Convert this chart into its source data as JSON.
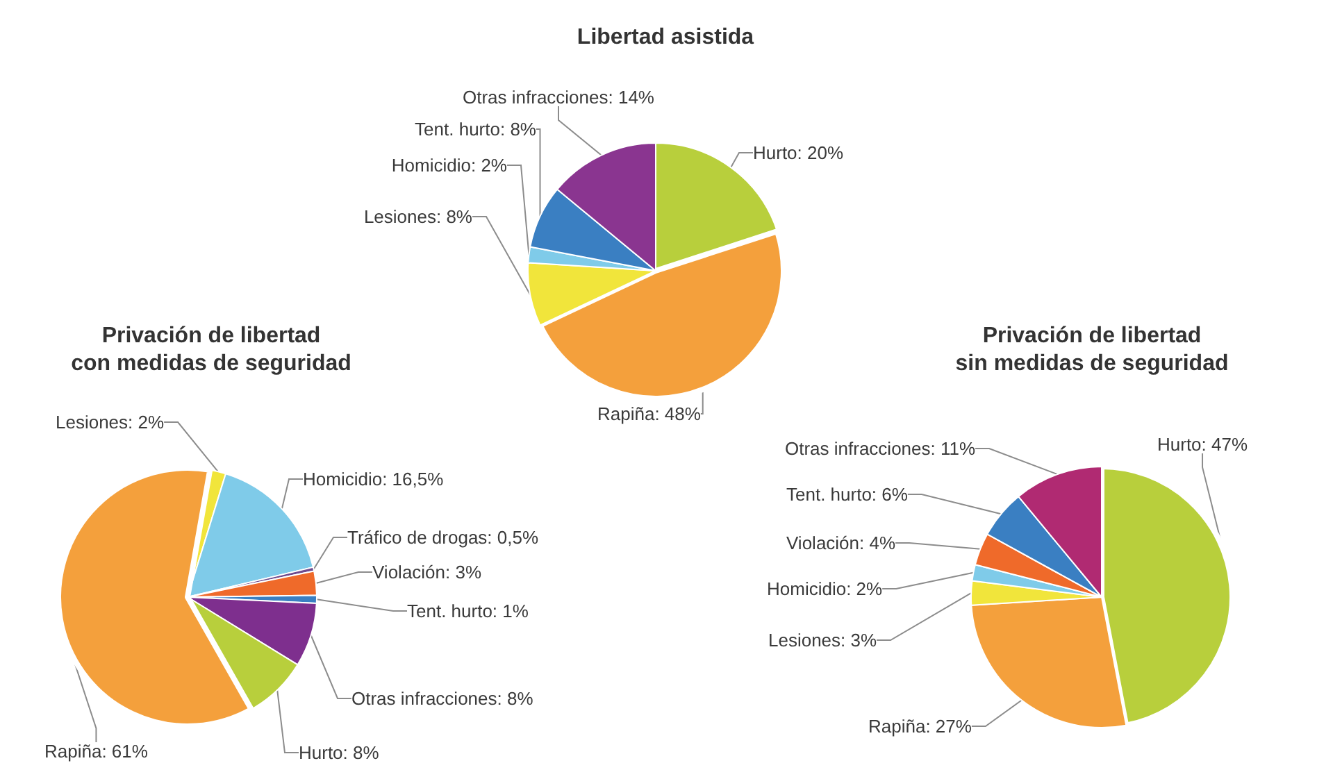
{
  "chart_data": [
    {
      "type": "pie",
      "title": "Libertad asistida",
      "categories": [
        "Hurto",
        "Rapiña",
        "Lesiones",
        "Homicidio",
        "Tent. hurto",
        "Otras infracciones"
      ],
      "values": [
        20,
        48,
        8,
        2,
        8,
        14
      ],
      "value_labels": [
        "20%",
        "48%",
        "8%",
        "2%",
        "8%",
        "14%"
      ],
      "colors": [
        "#b8cf3c",
        "#f4a03c",
        "#f1e53b",
        "#7fcbe9",
        "#3a7fc2",
        "#8a3590"
      ]
    },
    {
      "type": "pie",
      "title": "Privación de libertad\ncon medidas de seguridad",
      "categories": [
        "Lesiones",
        "Homicidio",
        "Tráfico de drogas",
        "Violación",
        "Tent. hurto",
        "Otras infracciones",
        "Hurto",
        "Rapiña"
      ],
      "values": [
        2,
        16.5,
        0.5,
        3,
        1,
        8,
        8,
        61
      ],
      "value_labels": [
        "2%",
        "16,5%",
        "0,5%",
        "3%",
        "1%",
        "8%",
        "8%",
        "61%"
      ],
      "colors": [
        "#f1e53b",
        "#7fcbe9",
        "#6e4a8e",
        "#ef6a2a",
        "#3a7fc2",
        "#7e2f8e",
        "#b8cf3c",
        "#f4a03c"
      ]
    },
    {
      "type": "pie",
      "title": "Privación de libertad\nsin medidas de seguridad",
      "categories": [
        "Hurto",
        "Rapiña",
        "Lesiones",
        "Homicidio",
        "Violación",
        "Tent. hurto",
        "Otras infracciones"
      ],
      "values": [
        47,
        27,
        3,
        2,
        4,
        6,
        11
      ],
      "value_labels": [
        "47%",
        "27%",
        "3%",
        "2%",
        "4%",
        "6%",
        "11%"
      ],
      "colors": [
        "#b8cf3c",
        "#f4a03c",
        "#f1e53b",
        "#7fcbe9",
        "#ef6a2a",
        "#3a7fc2",
        "#b02a72"
      ]
    }
  ]
}
